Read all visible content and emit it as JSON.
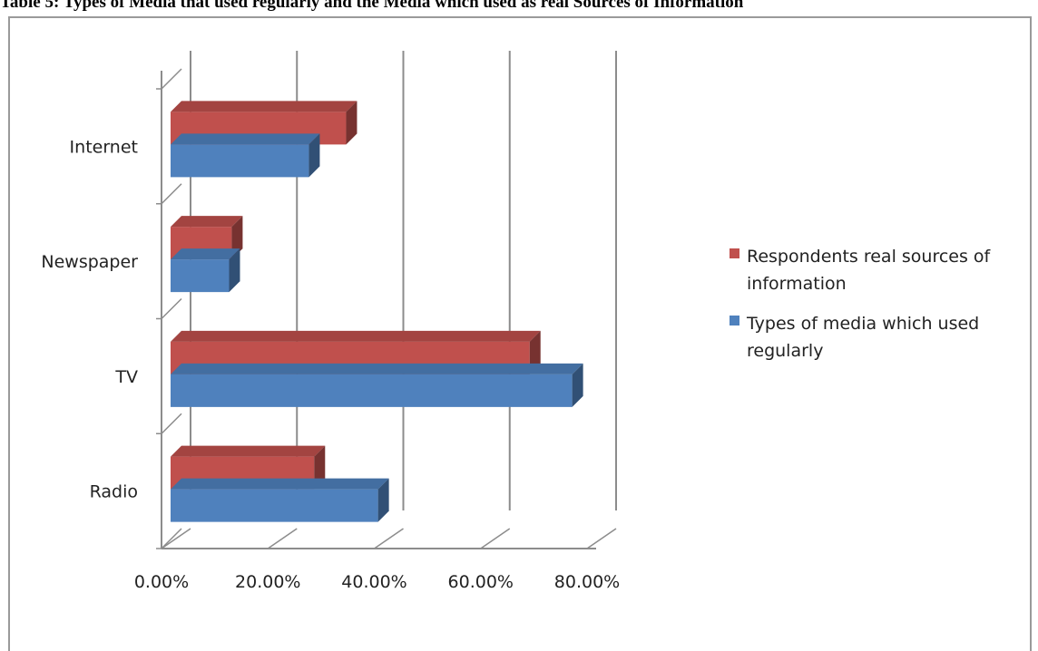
{
  "chart_data": {
    "type": "bar",
    "orientation": "horizontal",
    "style": "3d-clustered",
    "title": "Table 5: Types of Media that used regularly and the Media which used as real Sources of Information",
    "categories": [
      "Radio",
      "TV",
      "Newspaper",
      "Internet"
    ],
    "series": [
      {
        "name": "Types of media which used regularly",
        "color": "#4f81bd",
        "values": [
          39,
          75.5,
          11,
          26
        ]
      },
      {
        "name": "Respondents real sources of information",
        "color": "#c0504d",
        "values": [
          27,
          67.5,
          11.5,
          33
        ]
      }
    ],
    "xlim": [
      0,
      80
    ],
    "xticks": [
      "0.00%",
      "20.00%",
      "40.00%",
      "60.00%",
      "80.00%"
    ],
    "grid": true,
    "legend": {
      "placement": "right",
      "entries": [
        {
          "series": 1,
          "lines": [
            "Respondents real sources of",
            "information"
          ]
        },
        {
          "series": 0,
          "lines": [
            "Types of media which used",
            "regularly"
          ]
        }
      ]
    }
  }
}
